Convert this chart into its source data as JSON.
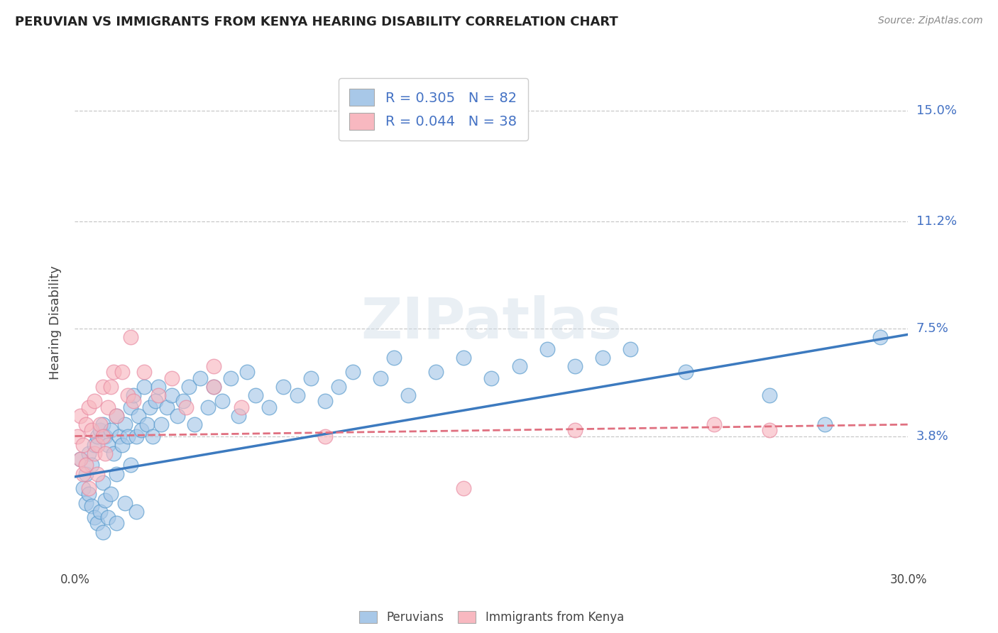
{
  "title": "PERUVIAN VS IMMIGRANTS FROM KENYA HEARING DISABILITY CORRELATION CHART",
  "source_text": "Source: ZipAtlas.com",
  "ylabel": "Hearing Disability",
  "xmin": 0.0,
  "xmax": 0.3,
  "ymin": -0.008,
  "ymax": 0.162,
  "yticks": [
    0.038,
    0.075,
    0.112,
    0.15
  ],
  "ytick_labels": [
    "3.8%",
    "7.5%",
    "11.2%",
    "15.0%"
  ],
  "xticks": [
    0.0,
    0.3
  ],
  "xtick_labels": [
    "0.0%",
    "30.0%"
  ],
  "blue_color": "#a8c8e8",
  "blue_edge_color": "#5599cc",
  "blue_color_dark": "#3c7abf",
  "pink_color": "#f8b8c0",
  "pink_edge_color": "#e888a0",
  "pink_color_dark": "#e07080",
  "blue_R": 0.305,
  "blue_N": 82,
  "pink_R": 0.044,
  "pink_N": 38,
  "legend_label_blue": "Peruvians",
  "legend_label_pink": "Immigrants from Kenya",
  "watermark": "ZIPatlas",
  "blue_trend_start_x": 0.0,
  "blue_trend_start_y": 0.024,
  "blue_trend_end_x": 0.3,
  "blue_trend_end_y": 0.073,
  "pink_trend_start_x": 0.0,
  "pink_trend_start_y": 0.038,
  "pink_trend_end_x": 0.3,
  "pink_trend_end_y": 0.042,
  "blue_scatter_x": [
    0.002,
    0.003,
    0.004,
    0.004,
    0.005,
    0.005,
    0.006,
    0.006,
    0.007,
    0.007,
    0.008,
    0.008,
    0.009,
    0.009,
    0.01,
    0.01,
    0.01,
    0.011,
    0.011,
    0.012,
    0.012,
    0.013,
    0.013,
    0.014,
    0.015,
    0.015,
    0.015,
    0.016,
    0.017,
    0.018,
    0.018,
    0.019,
    0.02,
    0.02,
    0.021,
    0.022,
    0.022,
    0.023,
    0.024,
    0.025,
    0.026,
    0.027,
    0.028,
    0.029,
    0.03,
    0.031,
    0.033,
    0.035,
    0.037,
    0.039,
    0.041,
    0.043,
    0.045,
    0.048,
    0.05,
    0.053,
    0.056,
    0.059,
    0.062,
    0.065,
    0.07,
    0.075,
    0.08,
    0.085,
    0.09,
    0.095,
    0.1,
    0.11,
    0.115,
    0.12,
    0.13,
    0.14,
    0.15,
    0.16,
    0.17,
    0.18,
    0.19,
    0.2,
    0.22,
    0.25,
    0.27,
    0.29
  ],
  "blue_scatter_y": [
    0.03,
    0.02,
    0.025,
    0.015,
    0.032,
    0.018,
    0.028,
    0.014,
    0.035,
    0.01,
    0.038,
    0.008,
    0.04,
    0.012,
    0.042,
    0.022,
    0.005,
    0.038,
    0.016,
    0.035,
    0.01,
    0.04,
    0.018,
    0.032,
    0.045,
    0.025,
    0.008,
    0.038,
    0.035,
    0.042,
    0.015,
    0.038,
    0.048,
    0.028,
    0.052,
    0.038,
    0.012,
    0.045,
    0.04,
    0.055,
    0.042,
    0.048,
    0.038,
    0.05,
    0.055,
    0.042,
    0.048,
    0.052,
    0.045,
    0.05,
    0.055,
    0.042,
    0.058,
    0.048,
    0.055,
    0.05,
    0.058,
    0.045,
    0.06,
    0.052,
    0.048,
    0.055,
    0.052,
    0.058,
    0.05,
    0.055,
    0.06,
    0.058,
    0.065,
    0.052,
    0.06,
    0.065,
    0.058,
    0.062,
    0.068,
    0.062,
    0.065,
    0.068,
    0.06,
    0.052,
    0.042,
    0.072
  ],
  "pink_scatter_x": [
    0.001,
    0.002,
    0.002,
    0.003,
    0.003,
    0.004,
    0.004,
    0.005,
    0.005,
    0.006,
    0.007,
    0.007,
    0.008,
    0.008,
    0.009,
    0.01,
    0.01,
    0.011,
    0.012,
    0.013,
    0.014,
    0.015,
    0.017,
    0.019,
    0.021,
    0.025,
    0.03,
    0.035,
    0.04,
    0.05,
    0.06,
    0.09,
    0.14,
    0.18,
    0.23,
    0.25,
    0.05,
    0.02
  ],
  "pink_scatter_y": [
    0.038,
    0.03,
    0.045,
    0.035,
    0.025,
    0.042,
    0.028,
    0.048,
    0.02,
    0.04,
    0.032,
    0.05,
    0.035,
    0.025,
    0.042,
    0.038,
    0.055,
    0.032,
    0.048,
    0.055,
    0.06,
    0.045,
    0.06,
    0.052,
    0.05,
    0.06,
    0.052,
    0.058,
    0.048,
    0.055,
    0.048,
    0.038,
    0.02,
    0.04,
    0.042,
    0.04,
    0.062,
    0.072
  ]
}
